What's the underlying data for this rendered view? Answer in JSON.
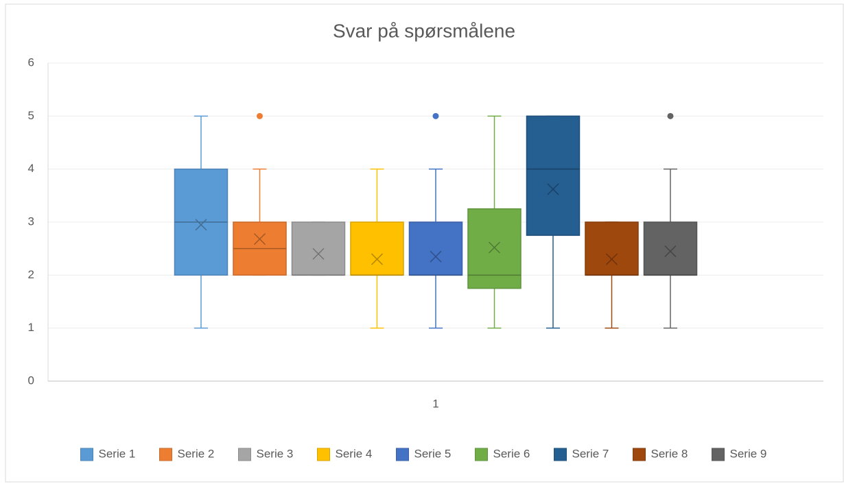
{
  "chart_data": {
    "type": "box",
    "title": "Svar på spørsmålene",
    "categories": [
      "1"
    ],
    "ylim": [
      0,
      6
    ],
    "yticks": [
      0,
      1,
      2,
      3,
      4,
      5,
      6
    ],
    "grid": true,
    "legend": "bottom",
    "series": [
      {
        "name": "Serie 1",
        "color": "#5b9bd5",
        "min": 1,
        "q1": 2,
        "median": 3,
        "q3": 4,
        "max": 5,
        "mean": 2.95,
        "outliers": []
      },
      {
        "name": "Serie 2",
        "color": "#ed7d31",
        "min": 2,
        "q1": 2,
        "median": 2.5,
        "q3": 3,
        "max": 4,
        "mean": 2.68,
        "outliers": [
          5
        ]
      },
      {
        "name": "Serie 3",
        "color": "#a5a5a5",
        "min": 2,
        "q1": 2,
        "median": 2,
        "q3": 3,
        "max": 3,
        "mean": 2.4,
        "outliers": []
      },
      {
        "name": "Serie 4",
        "color": "#ffc000",
        "min": 1,
        "q1": 2,
        "median": 2,
        "q3": 3,
        "max": 4,
        "mean": 2.3,
        "outliers": []
      },
      {
        "name": "Serie 5",
        "color": "#4472c4",
        "min": 1,
        "q1": 2,
        "median": 2,
        "q3": 3,
        "max": 4,
        "mean": 2.35,
        "outliers": [
          5
        ]
      },
      {
        "name": "Serie 6",
        "color": "#70ad47",
        "min": 1,
        "q1": 1.75,
        "median": 2,
        "q3": 3.25,
        "max": 5,
        "mean": 2.52,
        "outliers": []
      },
      {
        "name": "Serie 7",
        "color": "#255e91",
        "min": 1,
        "q1": 2.75,
        "median": 4,
        "q3": 5,
        "max": 5,
        "mean": 3.62,
        "outliers": []
      },
      {
        "name": "Serie 8",
        "color": "#9e480e",
        "min": 1,
        "q1": 2,
        "median": 2,
        "q3": 3,
        "max": 3,
        "mean": 2.3,
        "outliers": []
      },
      {
        "name": "Serie 9",
        "color": "#636363",
        "min": 1,
        "q1": 2,
        "median": 2,
        "q3": 3,
        "max": 4,
        "mean": 2.45,
        "outliers": [
          5
        ]
      }
    ]
  }
}
